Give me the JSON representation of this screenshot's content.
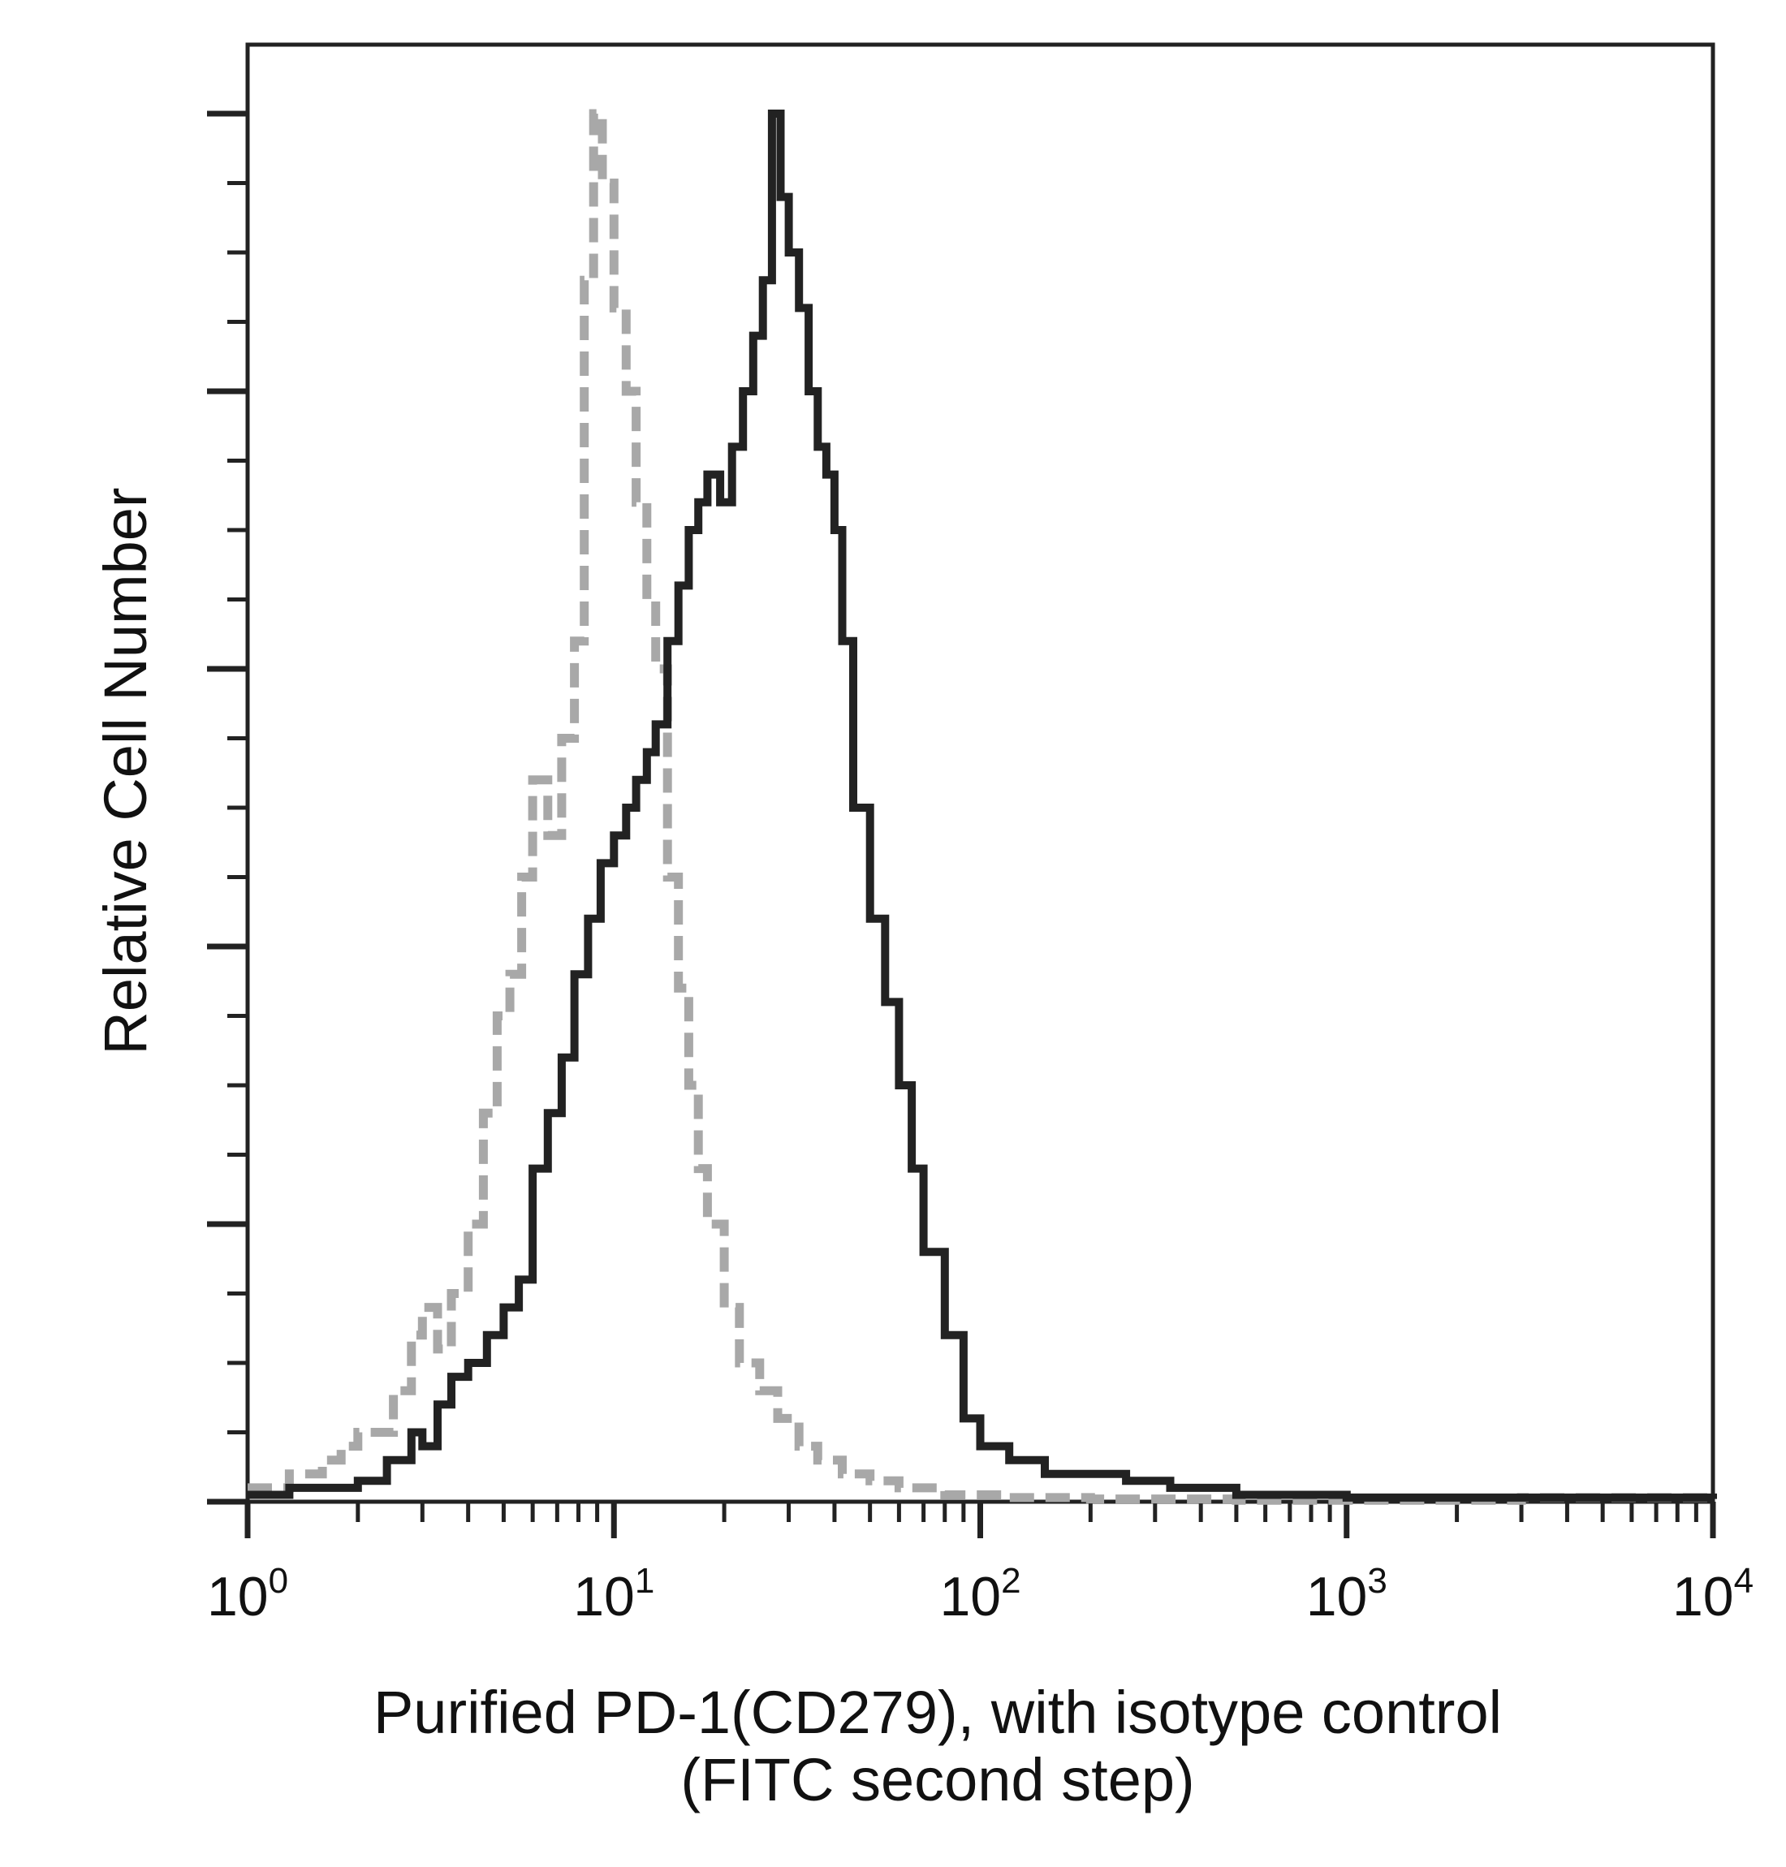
{
  "chart_data": {
    "type": "line",
    "title": "",
    "xlabel": "Purified PD-1(CD279), with isotype control",
    "xlabel_line2": "(FITC second step)",
    "ylabel": "Relative Cell Number",
    "x_scale": "log",
    "xlim": [
      1,
      10000
    ],
    "ylim": [
      0,
      100
    ],
    "grid": false,
    "legend": "none",
    "x_ticks": [
      {
        "base": "10",
        "exp": "0",
        "value": 1
      },
      {
        "base": "10",
        "exp": "1",
        "value": 10
      },
      {
        "base": "10",
        "exp": "2",
        "value": 100
      },
      {
        "base": "10",
        "exp": "3",
        "value": 1000
      },
      {
        "base": "10",
        "exp": "4",
        "value": 10000
      }
    ],
    "series": [
      {
        "style": "isotype-control",
        "color": "#a8a8a8",
        "x": [
          1.0,
          1.3,
          1.6,
          1.8,
          2.0,
          2.3,
          2.5,
          2.8,
          3.0,
          3.3,
          3.6,
          4.0,
          4.4,
          4.8,
          5.2,
          5.6,
          6.0,
          6.6,
          7.2,
          7.8,
          8.3,
          8.8,
          9.3,
          10.0,
          10.8,
          11.5,
          12.3,
          13.0,
          14.0,
          15.0,
          16.0,
          17.0,
          18.0,
          20.0,
          22.0,
          25.0,
          28.0,
          32.0,
          36.0,
          42.0,
          50.0,
          60.0,
          80.0,
          120.0,
          200.0,
          500.0,
          1000.0,
          3000.0,
          10000.0
        ],
        "y": [
          1,
          2,
          3,
          4,
          5,
          5,
          8,
          12,
          14,
          11,
          15,
          20,
          28,
          35,
          38,
          45,
          52,
          48,
          55,
          62,
          88,
          100,
          95,
          86,
          80,
          72,
          65,
          60,
          45,
          37,
          30,
          24,
          20,
          14,
          10,
          8,
          6,
          4,
          3,
          2,
          1.5,
          1,
          0.5,
          0.3,
          0.2,
          0.1,
          0.1,
          0.3,
          0.1
        ]
      },
      {
        "style": "pd-1-stained",
        "color": "#222222",
        "x": [
          1.0,
          1.3,
          1.6,
          2.0,
          2.4,
          2.8,
          3.0,
          3.3,
          3.6,
          4.0,
          4.5,
          5.0,
          5.5,
          6.0,
          6.6,
          7.2,
          7.8,
          8.5,
          9.2,
          10.0,
          10.8,
          11.5,
          12.3,
          13.0,
          14.0,
          15.0,
          16.0,
          17.0,
          18.0,
          19.5,
          21.0,
          22.5,
          24.0,
          25.5,
          27.0,
          28.5,
          30.0,
          32.0,
          34.0,
          36.0,
          38.0,
          40.0,
          42.0,
          45.0,
          50.0,
          55.0,
          60.0,
          65.0,
          70.0,
          80.0,
          90.0,
          100.0,
          120.0,
          150.0,
          200.0,
          250.0,
          330.0,
          500.0,
          1000.0,
          3000.0,
          10000.0
        ],
        "y": [
          0.5,
          1,
          1,
          1.5,
          3,
          5,
          4,
          7,
          9,
          10,
          12,
          14,
          16,
          24,
          28,
          32,
          38,
          42,
          46,
          48,
          50,
          52,
          54,
          56,
          62,
          66,
          70,
          72,
          74,
          72,
          76,
          80,
          84,
          88,
          100,
          94,
          90,
          86,
          80,
          76,
          74,
          70,
          62,
          50,
          42,
          36,
          30,
          24,
          18,
          12,
          6,
          4,
          3,
          2,
          2,
          1.5,
          1,
          0.5,
          0.3,
          0.3,
          0.2
        ]
      }
    ]
  }
}
